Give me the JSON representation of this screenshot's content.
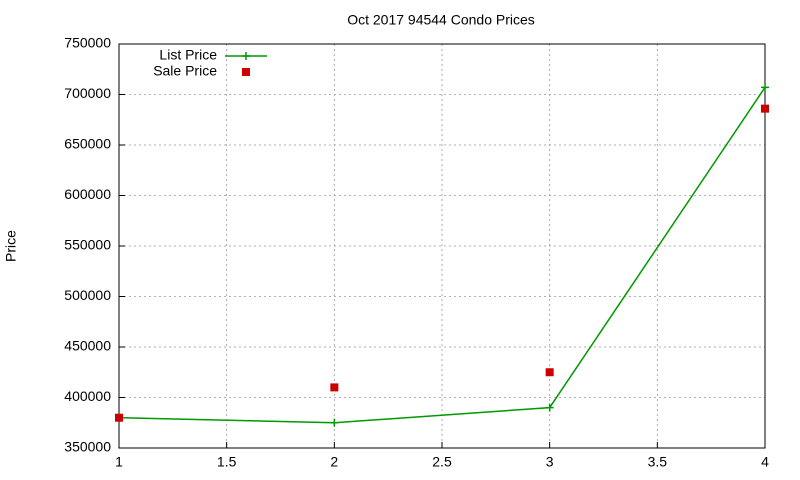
{
  "chart_data": {
    "type": "line",
    "title": "Oct 2017 94544 Condo Prices",
    "ylabel": "Price",
    "x": [
      1,
      2,
      3,
      4
    ],
    "series": [
      {
        "name": "List Price",
        "color": "#009900",
        "mode": "linespoints",
        "marker": "plus",
        "values": [
          380000,
          375000,
          390000,
          707000
        ]
      },
      {
        "name": "Sale Price",
        "color": "#cc0000",
        "mode": "points",
        "marker": "square",
        "values": [
          380000,
          410000,
          425000,
          686000
        ]
      }
    ],
    "xlim": [
      1,
      4
    ],
    "xticks": [
      1,
      1.5,
      2,
      2.5,
      3,
      3.5,
      4
    ],
    "ylim": [
      350000,
      750000
    ],
    "yticks": [
      350000,
      400000,
      450000,
      500000,
      550000,
      600000,
      650000,
      700000,
      750000
    ],
    "grid": true,
    "legend": "top-left"
  }
}
